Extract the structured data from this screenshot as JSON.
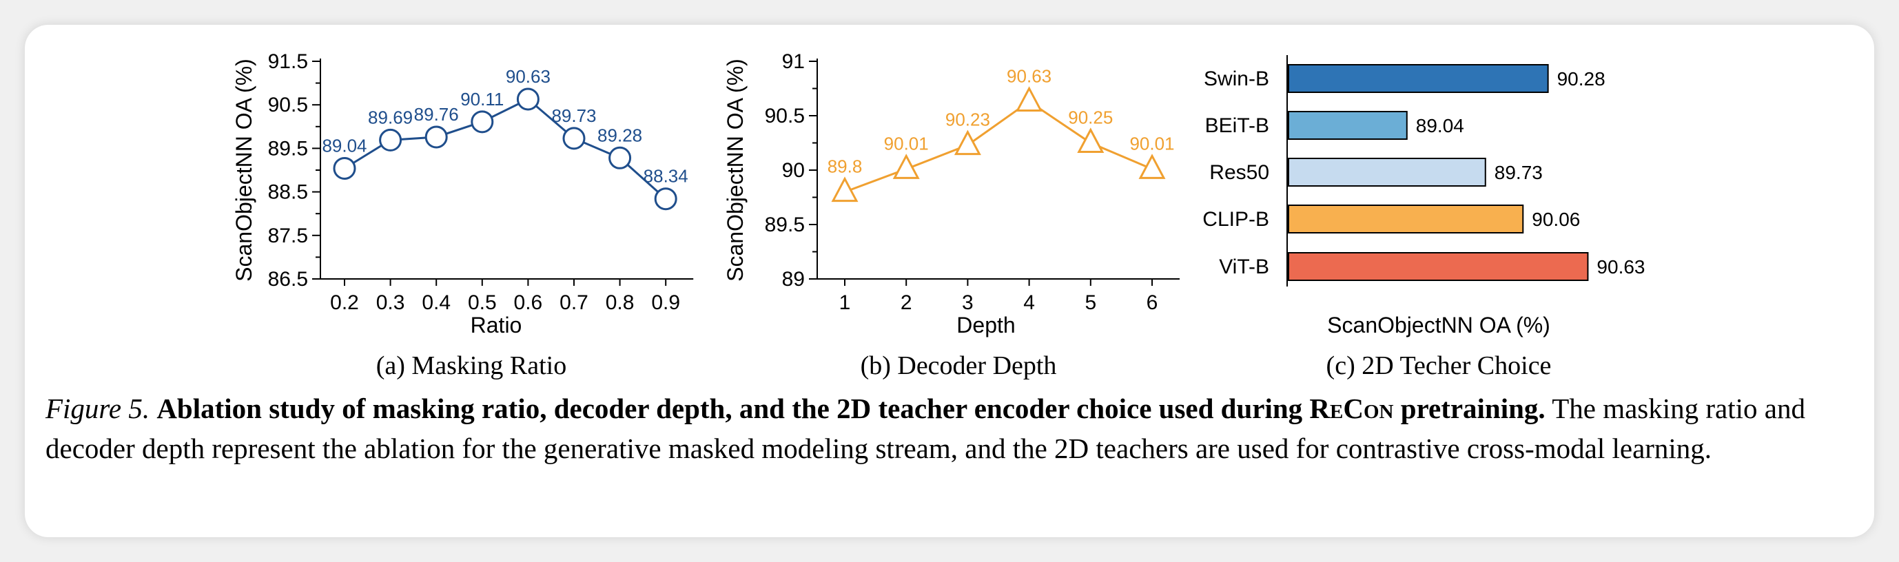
{
  "chart_data": [
    {
      "type": "line",
      "ylabel": "ScanObjectNN OA (%)",
      "xlabel": "Ratio",
      "subcaption": "(a) Masking Ratio",
      "x": [
        "0.2",
        "0.3",
        "0.4",
        "0.5",
        "0.6",
        "0.7",
        "0.8",
        "0.9"
      ],
      "values": [
        89.04,
        89.69,
        89.76,
        90.11,
        90.63,
        89.73,
        89.28,
        88.34
      ],
      "value_labels": [
        "89.04",
        "89.69",
        "89.76",
        "90.11",
        "90.63",
        "89.73",
        "89.28",
        "88.34"
      ],
      "yticks": [
        "86.5",
        "87.5",
        "88.5",
        "89.5",
        "90.5",
        "91.5"
      ],
      "ylim": [
        86.5,
        91.5
      ],
      "marker": "circle",
      "color": "#1f4e8c"
    },
    {
      "type": "line",
      "ylabel": "ScanObjectNN OA (%)",
      "xlabel": "Depth",
      "subcaption": "(b) Decoder Depth",
      "x": [
        "1",
        "2",
        "3",
        "4",
        "5",
        "6"
      ],
      "values": [
        89.8,
        90.01,
        90.23,
        90.63,
        90.25,
        90.01
      ],
      "value_labels": [
        "89.8",
        "90.01",
        "90.23",
        "90.63",
        "90.25",
        "90.01"
      ],
      "yticks": [
        "89",
        "89.5",
        "90",
        "90.5",
        "91"
      ],
      "ylim": [
        89,
        91
      ],
      "marker": "triangle",
      "color": "#f0a030"
    },
    {
      "type": "bar",
      "orientation": "horizontal",
      "xlabel": "ScanObjectNN OA (%)",
      "subcaption": "(c) 2D Techer Choice",
      "categories": [
        "Swin-B",
        "BEiT-B",
        "Res50",
        "CLIP-B",
        "ViT-B"
      ],
      "values": [
        90.28,
        89.04,
        89.73,
        90.06,
        90.63
      ],
      "value_labels": [
        "90.28",
        "89.04",
        "89.73",
        "90.06",
        "90.63"
      ],
      "colors": [
        "#2e74b5",
        "#6baed6",
        "#c6dbef",
        "#f8b04f",
        "#ec6a50"
      ],
      "xlim": [
        88.0,
        90.7
      ]
    }
  ],
  "caption": {
    "label": "Figure 5.",
    "bold_part1": "Ablation study of masking ratio, decoder depth, and the 2D teacher encoder choice used during ",
    "recon": "ReCon",
    "bold_part2": " pretraining.",
    "body": "The masking ratio and decoder depth represent the ablation for the generative masked modeling stream, and the 2D teachers are used for contrastive cross-modal learning."
  }
}
